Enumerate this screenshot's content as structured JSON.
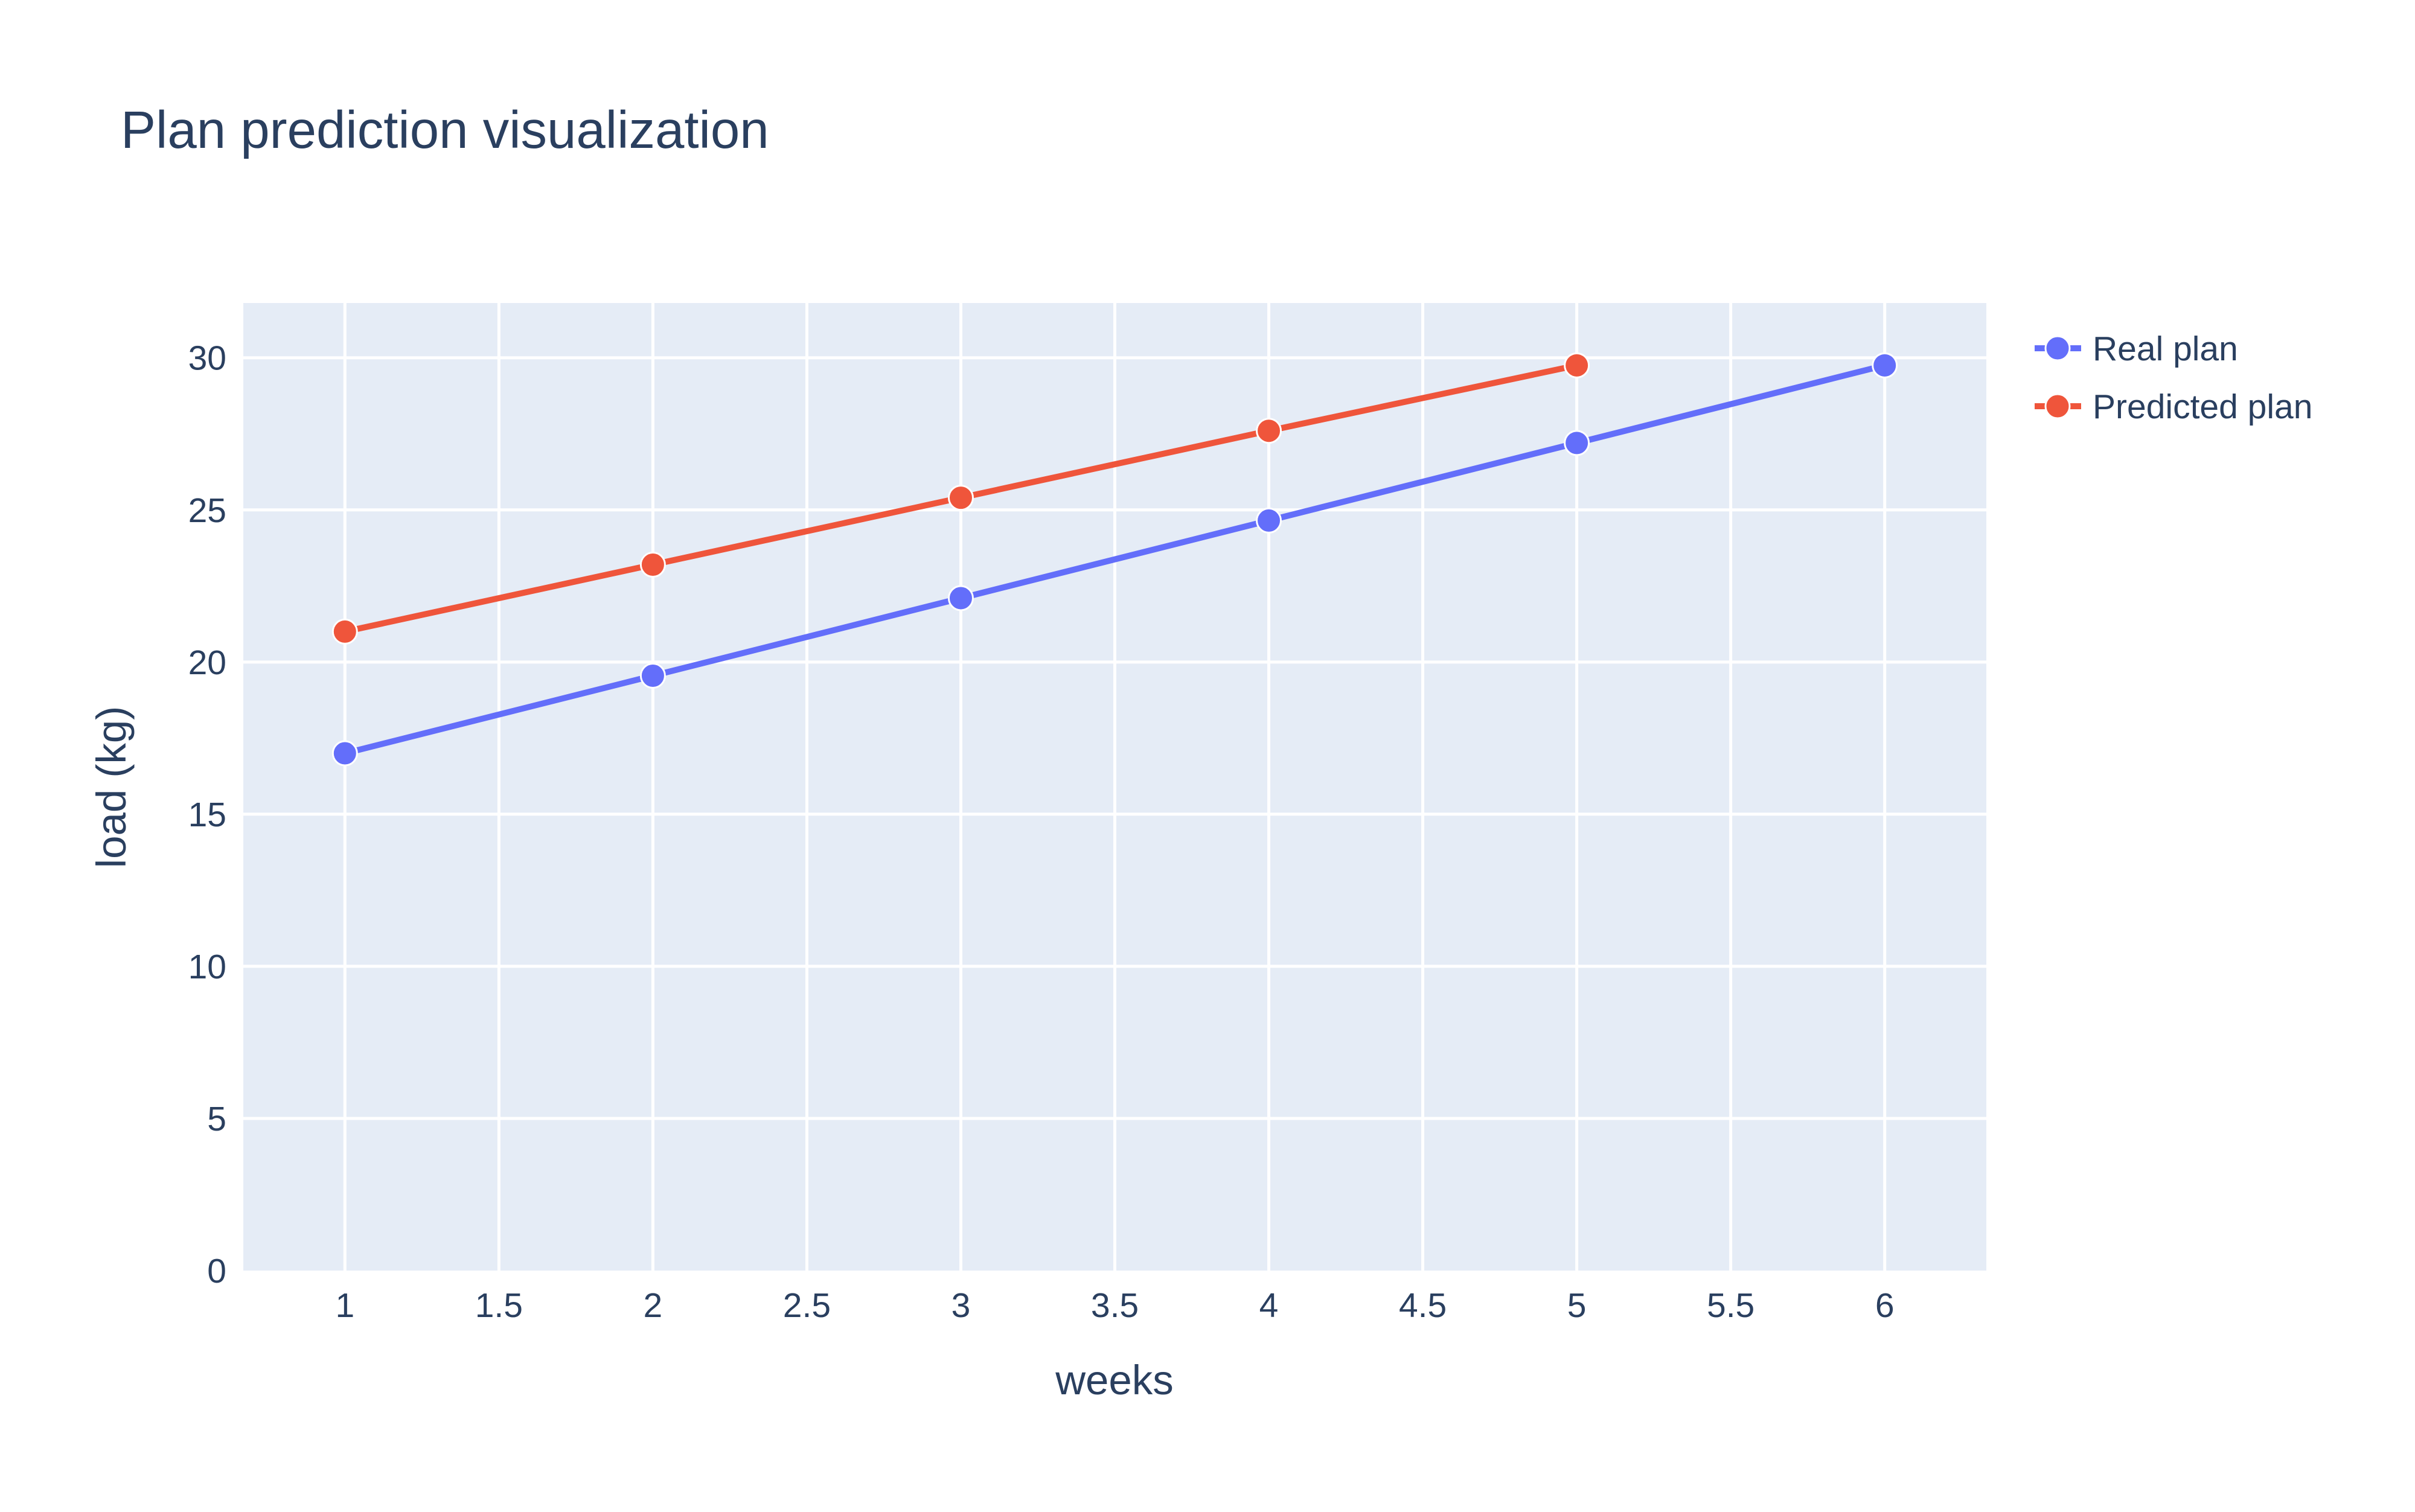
{
  "chart_data": {
    "type": "line",
    "title": "Plan prediction visualization",
    "xlabel": "weeks",
    "ylabel": "load (kg)",
    "xlim": [
      0.67,
      6.33
    ],
    "ylim": [
      0,
      31.8
    ],
    "x_ticks": [
      "1",
      "1.5",
      "2",
      "2.5",
      "3",
      "3.5",
      "4",
      "4.5",
      "5",
      "5.5",
      "6"
    ],
    "y_ticks": [
      "0",
      "5",
      "10",
      "15",
      "20",
      "25",
      "30"
    ],
    "grid": true,
    "legend_position": "top-right",
    "series": [
      {
        "name": "Real plan",
        "color": "#636efa",
        "x": [
          1,
          2,
          3,
          4,
          5,
          6
        ],
        "y": [
          17.0,
          19.55,
          22.1,
          24.65,
          27.2,
          29.75
        ]
      },
      {
        "name": "Predicted plan",
        "color": "#ef553b",
        "x": [
          1,
          2,
          3,
          4,
          5
        ],
        "y": [
          21.0,
          23.2,
          25.4,
          27.6,
          29.75
        ]
      }
    ],
    "colors": {
      "plot_background": "#e5ecf6",
      "grid": "#ffffff",
      "text": "#2a3f5f"
    }
  }
}
